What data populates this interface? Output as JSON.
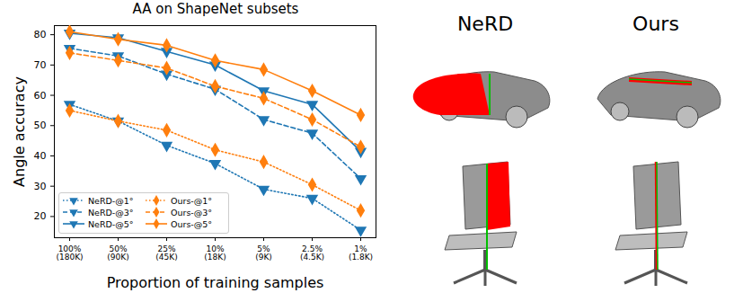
{
  "chart_data": {
    "type": "line",
    "title": "AA on ShapeNet subsets",
    "x_label": "Proportion of training samples",
    "y_label": "Angle accuracy",
    "categories": [
      "100%\n(180K)",
      "50%\n(90K)",
      "25%\n(45K)",
      "10%\n(18K)",
      "5%\n(9K)",
      "2.5%\n(4.5K)",
      "1%\n(1.8K)"
    ],
    "series": [
      {
        "name": "NeRD-@1°",
        "color": "#1f77b4",
        "marker": "triangle_down",
        "line_style": "dotted",
        "values": [
          57,
          51.5,
          43.5,
          37.5,
          29,
          26,
          15.5
        ]
      },
      {
        "name": "NeRD-@3°",
        "color": "#1f77b4",
        "marker": "triangle_down",
        "line_style": "dashed",
        "values": [
          75.5,
          73,
          67,
          62,
          52,
          47.5,
          32.5
        ]
      },
      {
        "name": "NeRD-@5°",
        "color": "#1f77b4",
        "marker": "triangle_down",
        "line_style": "solid",
        "values": [
          80.5,
          79,
          74.5,
          70,
          61.5,
          57,
          41.5
        ]
      },
      {
        "name": "Ours-@1°",
        "color": "#ff7f0e",
        "marker": "diamond",
        "line_style": "dotted",
        "values": [
          55,
          51.5,
          48.5,
          42,
          38,
          30.5,
          22
        ]
      },
      {
        "name": "Ours-@3°",
        "color": "#ff7f0e",
        "marker": "diamond",
        "line_style": "dashed",
        "values": [
          74,
          71.5,
          69,
          63,
          59,
          52,
          43
        ]
      },
      {
        "name": "Ours-@5°",
        "color": "#ff7f0e",
        "marker": "diamond",
        "line_style": "solid",
        "values": [
          81,
          78.5,
          76.5,
          71.5,
          68.5,
          61.5,
          53.5
        ]
      }
    ],
    "ylim": [
      13,
      83
    ],
    "yticks": [
      20,
      30,
      40,
      50,
      60,
      70,
      80
    ],
    "legend": "lower left",
    "grid": false
  },
  "panels": {
    "titles": [
      "NeRD",
      "Ours"
    ]
  }
}
